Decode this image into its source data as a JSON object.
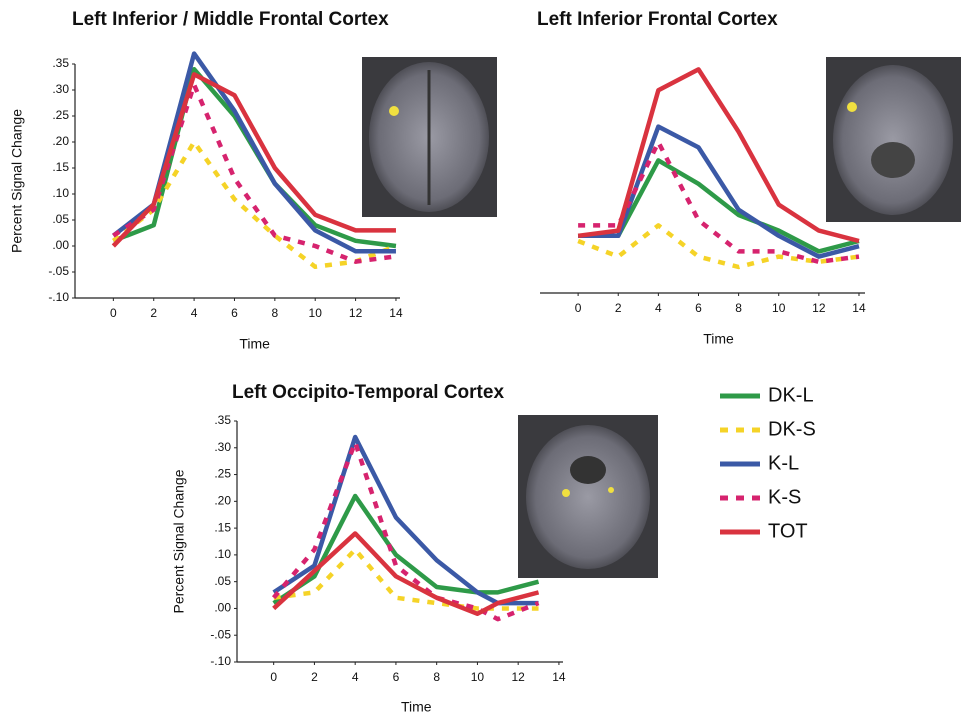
{
  "legend": [
    {
      "name": "DK-L",
      "color": "#2e9a48",
      "dashed": false
    },
    {
      "name": "DK-S",
      "color": "#f5d327",
      "dashed": true
    },
    {
      "name": "K-L",
      "color": "#3b59a6",
      "dashed": false
    },
    {
      "name": "K-S",
      "color": "#d6236e",
      "dashed": true
    },
    {
      "name": "TOT",
      "color": "#d9333f",
      "dashed": false
    }
  ],
  "chart_data": [
    {
      "type": "line",
      "title": "Left Inferior / Middle Frontal Cortex",
      "xlabel": "Time",
      "ylabel": "Percent Signal Change",
      "x": [
        0,
        2,
        4,
        6,
        8,
        10,
        12,
        14
      ],
      "series": [
        {
          "values": [
            0.01,
            0.04,
            0.34,
            0.25,
            0.12,
            0.04,
            0.01,
            0.0
          ]
        },
        {
          "values": [
            0.01,
            0.07,
            0.2,
            0.09,
            0.02,
            -0.04,
            -0.03,
            0.0
          ]
        },
        {
          "values": [
            0.02,
            0.08,
            0.37,
            0.26,
            0.12,
            0.03,
            -0.01,
            -0.01
          ]
        },
        {
          "values": [
            0.02,
            0.07,
            0.31,
            0.13,
            0.02,
            0.0,
            -0.03,
            -0.02
          ]
        },
        {
          "values": [
            0.0,
            0.08,
            0.33,
            0.29,
            0.15,
            0.06,
            0.03,
            0.03
          ]
        }
      ],
      "xlim": [
        -1.9,
        14.2
      ],
      "xticks": [
        0,
        2,
        4,
        6,
        8,
        10,
        12,
        14
      ],
      "ylim": [
        -0.1,
        0.35
      ],
      "yticks": [
        {
          "value": 0.35,
          "label": ".35"
        },
        {
          "value": 0.3,
          "label": ".30"
        },
        {
          "value": 0.25,
          "label": ".25"
        },
        {
          "value": 0.2,
          "label": ".20"
        },
        {
          "value": 0.15,
          "label": ".15"
        },
        {
          "value": 0.1,
          "label": ".10"
        },
        {
          "value": 0.05,
          "label": ".05"
        },
        {
          "value": 0.0,
          "label": ".00"
        },
        {
          "value": -0.05,
          "label": "-.05"
        },
        {
          "value": -0.1,
          "label": "-.10"
        }
      ]
    },
    {
      "type": "line",
      "title": "Left Inferior Frontal Cortex",
      "xlabel": "Time",
      "x": [
        0,
        2,
        4,
        6,
        8,
        10,
        12,
        14
      ],
      "series": [
        {
          "values": [
            0.01,
            0.01,
            0.155,
            0.11,
            0.05,
            0.02,
            -0.02,
            0.0
          ]
        },
        {
          "values": [
            0.0,
            -0.03,
            0.03,
            -0.03,
            -0.05,
            -0.03,
            -0.04,
            -0.03
          ]
        },
        {
          "values": [
            0.01,
            0.01,
            0.22,
            0.18,
            0.06,
            0.01,
            -0.03,
            -0.01
          ]
        },
        {
          "values": [
            0.03,
            0.03,
            0.19,
            0.04,
            -0.02,
            -0.02,
            -0.04,
            -0.03
          ]
        },
        {
          "values": [
            0.01,
            0.02,
            0.29,
            0.33,
            0.21,
            0.07,
            0.02,
            0.0
          ]
        }
      ],
      "xlim": [
        -1.9,
        14.3
      ],
      "xticks": [
        0,
        2,
        4,
        6,
        8,
        10,
        12,
        14
      ],
      "ylim": [
        -0.1,
        0.35
      ]
    },
    {
      "type": "line",
      "title": "Left Occipito-Temporal Cortex",
      "xlabel": "Time",
      "ylabel": "Percent Signal Change",
      "x": [
        0,
        2,
        4,
        6,
        8,
        10,
        11,
        13
      ],
      "series": [
        {
          "values": [
            0.01,
            0.06,
            0.21,
            0.1,
            0.04,
            0.03,
            0.03,
            0.05
          ]
        },
        {
          "values": [
            0.02,
            0.03,
            0.11,
            0.02,
            0.01,
            0.0,
            0.0,
            0.0
          ]
        },
        {
          "values": [
            0.03,
            0.08,
            0.32,
            0.17,
            0.09,
            0.03,
            0.01,
            0.01
          ]
        },
        {
          "values": [
            0.02,
            0.11,
            0.31,
            0.08,
            0.02,
            0.0,
            -0.02,
            0.01
          ]
        },
        {
          "values": [
            0.0,
            0.07,
            0.14,
            0.06,
            0.02,
            -0.01,
            0.01,
            0.03
          ]
        }
      ],
      "xlim": [
        -1.8,
        14.2
      ],
      "xticks": [
        0,
        2,
        4,
        6,
        8,
        10,
        12,
        14
      ],
      "ylim": [
        -0.1,
        0.35
      ],
      "yticks": [
        {
          "value": 0.35,
          "label": ".35"
        },
        {
          "value": 0.3,
          "label": ".30"
        },
        {
          "value": 0.25,
          "label": ".25"
        },
        {
          "value": 0.2,
          "label": ".20"
        },
        {
          "value": 0.15,
          "label": ".15"
        },
        {
          "value": 0.1,
          "label": ".10"
        },
        {
          "value": 0.05,
          "label": ".05"
        },
        {
          "value": 0.0,
          "label": ".00"
        },
        {
          "value": -0.05,
          "label": "-.05"
        },
        {
          "value": -0.1,
          "label": "-.10"
        }
      ]
    }
  ]
}
